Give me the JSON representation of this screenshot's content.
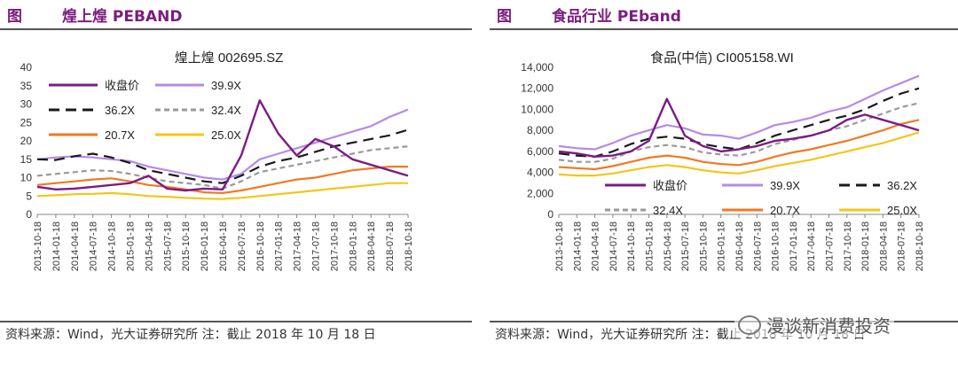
{
  "panels": [
    {
      "fig_label": "图",
      "fig_title": "煌上煌 PEBAND",
      "source_note": "资料来源：Wind，光大证券研究所 注：截止 2018 年 10 月 18 日"
    },
    {
      "fig_label": "图",
      "fig_title": "食品行业 PEband",
      "source_note": "资料来源：Wind，光大证券研究所 注：截止 2018 年 10 月 18 日"
    }
  ],
  "watermark": "漫谈新消费投资",
  "colors": {
    "close": "#7B1C84",
    "pe1": "#B58BE6",
    "pe2": "#1A1A1A",
    "pe3": "#9A9A9A",
    "pe4": "#F07A22",
    "pe5": "#F5C518"
  },
  "chart_data": [
    {
      "type": "line",
      "title": "煌上煌 002695.SZ",
      "ylim": [
        0,
        40
      ],
      "yticks": [
        "0",
        "5",
        "10",
        "15",
        "20",
        "25",
        "30",
        "35",
        "40"
      ],
      "x": [
        "2013-10-18",
        "2014-01-18",
        "2014-04-18",
        "2014-07-18",
        "2014-10-18",
        "2015-01-18",
        "2015-04-18",
        "2015-07-18",
        "2015-10-18",
        "2016-01-18",
        "2016-04-18",
        "2016-07-18",
        "2016-10-18",
        "2017-01-18",
        "2017-04-18",
        "2017-07-18",
        "2017-10-18",
        "2018-01-18",
        "2018-04-18",
        "2018-07-18",
        "2018-10-18"
      ],
      "legend": {
        "placement": "top-left",
        "columns": 2
      },
      "series": [
        {
          "name": "收盘价",
          "key": "close",
          "dash": "",
          "values": [
            7.5,
            6.8,
            7.0,
            7.5,
            8.0,
            8.5,
            10.5,
            7.0,
            6.5,
            7.0,
            6.8,
            16.0,
            31.0,
            22.0,
            16.0,
            20.5,
            18.5,
            15.0,
            13.5,
            12.0,
            10.5
          ]
        },
        {
          "name": "39.9X",
          "key": "pe1",
          "dash": "",
          "values": [
            15.0,
            15.5,
            15.8,
            15.5,
            15.0,
            14.5,
            13.0,
            12.0,
            11.0,
            10.0,
            9.5,
            11.0,
            15.0,
            16.5,
            18.0,
            19.5,
            21.0,
            22.5,
            24.0,
            26.5,
            28.5
          ]
        },
        {
          "name": "36.2X",
          "key": "pe2",
          "dash": "12 7",
          "values": [
            15.0,
            14.8,
            15.8,
            16.5,
            15.5,
            14.0,
            12.0,
            11.0,
            10.0,
            9.0,
            8.5,
            10.5,
            13.0,
            14.5,
            15.5,
            17.0,
            18.5,
            19.5,
            20.5,
            21.5,
            23.0
          ]
        },
        {
          "name": "32.4X",
          "key": "pe3",
          "dash": "6 4",
          "values": [
            10.5,
            11.0,
            11.5,
            12.0,
            11.8,
            11.0,
            10.0,
            9.0,
            8.5,
            8.0,
            7.0,
            9.0,
            11.5,
            12.5,
            13.5,
            14.5,
            15.5,
            16.5,
            17.5,
            18.0,
            18.5
          ]
        },
        {
          "name": "20.7X",
          "key": "pe4",
          "dash": "",
          "values": [
            8.0,
            8.5,
            9.0,
            9.5,
            9.8,
            9.0,
            8.0,
            7.5,
            6.8,
            6.0,
            5.8,
            6.5,
            7.5,
            8.5,
            9.5,
            10.0,
            11.0,
            12.0,
            12.5,
            13.0,
            13.0
          ]
        },
        {
          "name": "25.0X",
          "key": "pe5",
          "dash": "",
          "values": [
            5.0,
            5.2,
            5.5,
            5.6,
            5.8,
            5.5,
            5.0,
            4.8,
            4.5,
            4.3,
            4.2,
            4.5,
            5.0,
            5.5,
            6.0,
            6.5,
            7.0,
            7.5,
            8.0,
            8.5,
            8.5
          ]
        }
      ]
    },
    {
      "type": "line",
      "title": "食品(中信) CI005158.WI",
      "ylim": [
        0,
        14000
      ],
      "yticks": [
        "0",
        "2,000",
        "4,000",
        "6,000",
        "8,000",
        "10,000",
        "12,000",
        "14,000"
      ],
      "x": [
        "2013-10-18",
        "2014-01-18",
        "2014-04-18",
        "2014-07-18",
        "2014-10-18",
        "2015-01-18",
        "2015-04-18",
        "2015-07-18",
        "2015-10-18",
        "2016-01-18",
        "2016-04-18",
        "2016-07-18",
        "2016-10-18",
        "2017-01-18",
        "2017-04-18",
        "2017-07-18",
        "2017-10-18",
        "2018-01-18",
        "2018-04-18",
        "2018-07-18",
        "2018-10-18"
      ],
      "legend": {
        "placement": "bottom",
        "columns": 3
      },
      "series": [
        {
          "name": "收盘价",
          "key": "close",
          "dash": "",
          "values": [
            6000,
            5800,
            5500,
            5600,
            6000,
            7000,
            11000,
            7500,
            6500,
            6000,
            6200,
            6500,
            7000,
            7200,
            7500,
            8000,
            9000,
            9500,
            9000,
            8500,
            8000
          ]
        },
        {
          "name": "39.9X",
          "key": "pe1",
          "dash": "",
          "values": [
            6500,
            6300,
            6200,
            6800,
            7500,
            8000,
            8500,
            8200,
            7600,
            7500,
            7200,
            7800,
            8500,
            8800,
            9200,
            9800,
            10200,
            11000,
            11800,
            12500,
            13200
          ]
        },
        {
          "name": "36.2X",
          "key": "pe2",
          "dash": "12 7",
          "values": [
            5800,
            5600,
            5500,
            6000,
            6700,
            7200,
            7400,
            7200,
            6700,
            6400,
            6200,
            6800,
            7500,
            8000,
            8500,
            9000,
            9400,
            10000,
            10800,
            11500,
            12000
          ]
        },
        {
          "name": "32.4X",
          "key": "pe3",
          "dash": "6 4",
          "values": [
            5200,
            5000,
            5000,
            5300,
            6000,
            6400,
            6600,
            6400,
            5900,
            5700,
            5600,
            6000,
            6700,
            7100,
            7500,
            8000,
            8400,
            9000,
            9600,
            10200,
            10600
          ]
        },
        {
          "name": "20.7X",
          "key": "pe4",
          "dash": "",
          "values": [
            4500,
            4400,
            4300,
            4600,
            5000,
            5400,
            5600,
            5400,
            5000,
            4800,
            4700,
            5000,
            5500,
            5900,
            6200,
            6600,
            7000,
            7500,
            8000,
            8600,
            9000
          ]
        },
        {
          "name": "25.0X",
          "key": "pe5",
          "dash": "",
          "values": [
            3800,
            3700,
            3700,
            3900,
            4200,
            4500,
            4700,
            4500,
            4200,
            4000,
            3900,
            4200,
            4600,
            4900,
            5200,
            5600,
            6000,
            6400,
            6800,
            7300,
            7800
          ]
        }
      ]
    }
  ]
}
